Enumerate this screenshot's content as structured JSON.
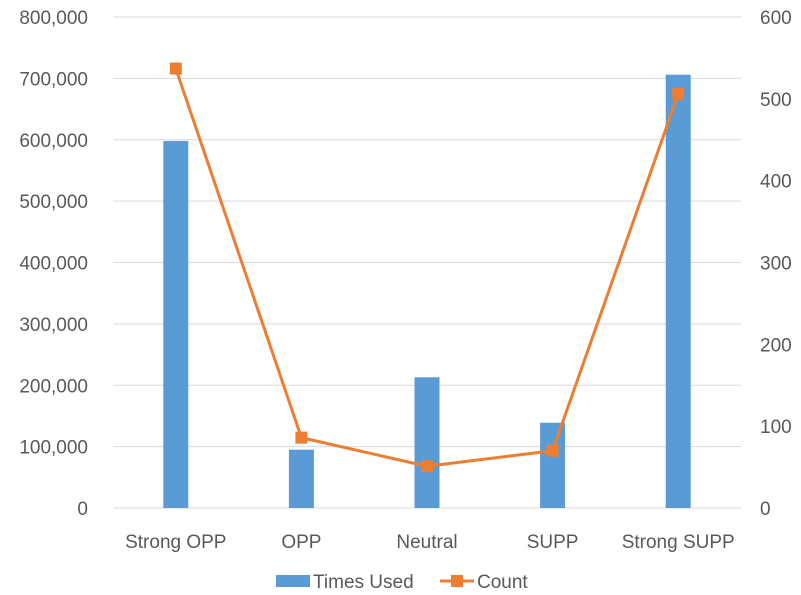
{
  "chart_data": {
    "type": "bar",
    "categories": [
      "Strong OPP",
      "OPP",
      "Neutral",
      "SUPP",
      "Strong SUPP"
    ],
    "series": [
      {
        "name": "Times Used",
        "type": "bar",
        "axis": "left",
        "color": "#5B9BD5",
        "values": [
          598000,
          95000,
          213000,
          139000,
          706000
        ]
      },
      {
        "name": "Count",
        "type": "line",
        "axis": "right",
        "color": "#ED7D31",
        "marker": "square",
        "values": [
          537,
          86,
          51,
          70,
          506
        ]
      }
    ],
    "y_left": {
      "ylim": [
        0,
        800000
      ],
      "ticks": [
        "0",
        "100,000",
        "200,000",
        "300,000",
        "400,000",
        "500,000",
        "600,000",
        "700,000",
        "800,000"
      ]
    },
    "y_right": {
      "ylim": [
        0,
        600
      ],
      "ticks": [
        "0",
        "100",
        "200",
        "300",
        "400",
        "500",
        "600"
      ]
    },
    "grid": true,
    "legend": "bottom",
    "title": "",
    "xlabel": "",
    "ylabel": ""
  }
}
